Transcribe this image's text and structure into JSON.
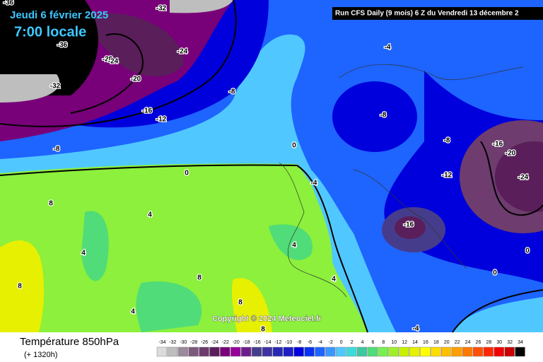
{
  "header": {
    "date": "Jeudi 6 février 2025",
    "time": "7:00 locale",
    "run": "Run CFS Daily (9 mois) 6 Z du Vendredi 13 décembre 2"
  },
  "copyright": "Copyright © 2024 Meteociel.fr",
  "footer": {
    "title": "Température 850hPa",
    "lead": "(+ 1320h)"
  },
  "legend": {
    "values": [
      -34,
      -32,
      -30,
      -28,
      -26,
      -24,
      -22,
      -20,
      -18,
      -16,
      -14,
      -12,
      -10,
      -8,
      -6,
      -4,
      -2,
      0,
      2,
      4,
      6,
      8,
      10,
      12,
      14,
      16,
      18,
      20,
      22,
      24,
      26,
      28,
      30,
      32,
      34
    ],
    "colors": [
      "#dcdcdc",
      "#bebebe",
      "#9b8a9b",
      "#7d5a7d",
      "#6e3c6e",
      "#5a1e5a",
      "#780078",
      "#96009b",
      "#6e1e8c",
      "#463c8c",
      "#3c32a0",
      "#2828b4",
      "#1e1ec8",
      "#0000dc",
      "#0a32f0",
      "#1e64ff",
      "#3c96ff",
      "#50c8ff",
      "#3cdcdc",
      "#3cc8a0",
      "#50dc78",
      "#78f050",
      "#a0f028",
      "#c8f000",
      "#e6f000",
      "#ffff00",
      "#ffdc00",
      "#ffbe00",
      "#ffa000",
      "#ff7800",
      "#ff5000",
      "#ff2800",
      "#f00000",
      "#c80000",
      "#000000"
    ]
  },
  "contour_labels": [
    -36,
    -32,
    -36,
    -28,
    -24,
    -24,
    -32,
    -20,
    -16,
    -12,
    -8,
    -8,
    -4,
    -8,
    -8,
    -16,
    -20,
    -24,
    0,
    0,
    -4,
    -12,
    -16,
    8,
    4,
    4,
    8,
    4,
    8,
    4,
    4,
    8,
    8,
    0,
    0,
    -4
  ]
}
